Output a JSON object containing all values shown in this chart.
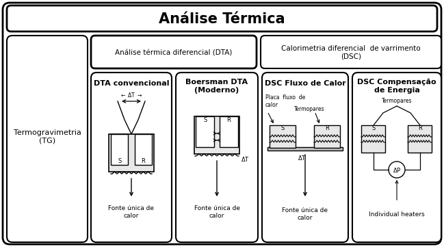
{
  "title": "Análise Térmica",
  "fig_bg": "#ffffff",
  "main_title_fontsize": 15,
  "label_fontsize": 8,
  "small_fontsize": 6.5,
  "tiny_fontsize": 5.5,
  "sections": {
    "TG": {
      "title": "Termogravimetria\n(TG)"
    },
    "DTA_group": {
      "title": "Análise térmica diferencial (DTA)"
    },
    "DSC_group": {
      "title": "Calorimetria diferencial  de varrimento\n(DSC)"
    },
    "DTA_conv": {
      "title": "DTA convencional",
      "bottom_label": "Fonte única de\ncalor"
    },
    "Boersman": {
      "title": "Boersman DTA\n(Moderno)",
      "bottom_label": "Fonte única de\ncalor"
    },
    "DSC_flux": {
      "title": "DSC Fluxo de Calor",
      "label1": "Placa  fluxo  de\ncalor",
      "label2": "Termopares",
      "bottom_label": "Fonte única de\ncalor"
    },
    "DSC_comp": {
      "title": "DSC Compensação\nde Energia",
      "label1": "Termopares",
      "bottom_label": "Individual heaters"
    }
  }
}
